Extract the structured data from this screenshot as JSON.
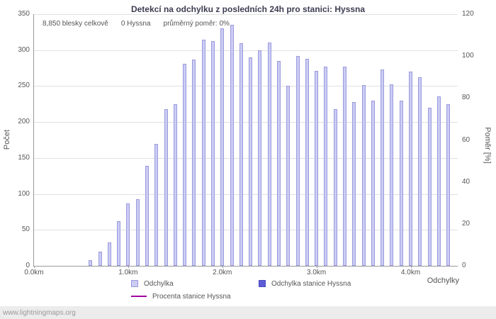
{
  "page": {
    "watermark": "www.lightningmaps.org"
  },
  "chart_data": {
    "type": "bar",
    "title": "Detekcí na odchylku z posledních 24h pro stanici: Hyssna",
    "annotations": [
      "8,850 blesky celkově",
      "0 Hyssna",
      "průměrný poměr: 0%"
    ],
    "xlabel": "Odchylky",
    "ylabel_left": "Počet",
    "ylabel_right": "Poměr [%]",
    "x_tick_labels": [
      "0.0km",
      "1.0km",
      "2.0km",
      "3.0km",
      "4.0km"
    ],
    "x_tick_positions_km": [
      0,
      1,
      2,
      3,
      4
    ],
    "xlim_km": [
      0,
      4.5
    ],
    "ylim_left": [
      0,
      350
    ],
    "y_ticks_left": [
      0,
      50,
      100,
      150,
      200,
      250,
      300,
      350
    ],
    "ylim_right": [
      0,
      120
    ],
    "y_ticks_right": [
      0,
      20,
      40,
      60,
      80,
      100,
      120
    ],
    "grid": true,
    "legend_position": "bottom",
    "series": [
      {
        "name": "Odchylka",
        "type": "bar",
        "color": "#ccccf4",
        "border_color": "#9a9ade",
        "x_km": [
          0.6,
          0.7,
          0.8,
          0.9,
          1.0,
          1.1,
          1.2,
          1.3,
          1.4,
          1.5,
          1.6,
          1.7,
          1.8,
          1.9,
          2.0,
          2.1,
          2.2,
          2.3,
          2.4,
          2.5,
          2.6,
          2.7,
          2.8,
          2.9,
          3.0,
          3.1,
          3.2,
          3.3,
          3.4,
          3.5,
          3.6,
          3.7,
          3.8,
          3.9,
          4.0,
          4.1,
          4.2,
          4.3,
          4.4
        ],
        "values": [
          8,
          20,
          33,
          62,
          87,
          93,
          139,
          170,
          218,
          225,
          281,
          287,
          315,
          313,
          330,
          335,
          310,
          290,
          300,
          311,
          285,
          250,
          292,
          288,
          271,
          277,
          218,
          277,
          228,
          251,
          230,
          273,
          252,
          230,
          270,
          262,
          220,
          236,
          225
        ]
      },
      {
        "name": "Odchylka stanice Hyssna",
        "type": "bar",
        "color": "#5c5cd6",
        "border_color": "#4a4ac0",
        "x_km": [],
        "values": []
      },
      {
        "name": "Procenta stanice Hyssna",
        "type": "line",
        "color": "#a100a1",
        "x_km": [],
        "values": []
      }
    ],
    "legend": [
      {
        "label": "Odchylka",
        "swatch": "light-square"
      },
      {
        "label": "Odchylka stanice Hyssna",
        "swatch": "dark-square"
      },
      {
        "label": "Procenta stanice Hyssna",
        "swatch": "line"
      }
    ]
  }
}
